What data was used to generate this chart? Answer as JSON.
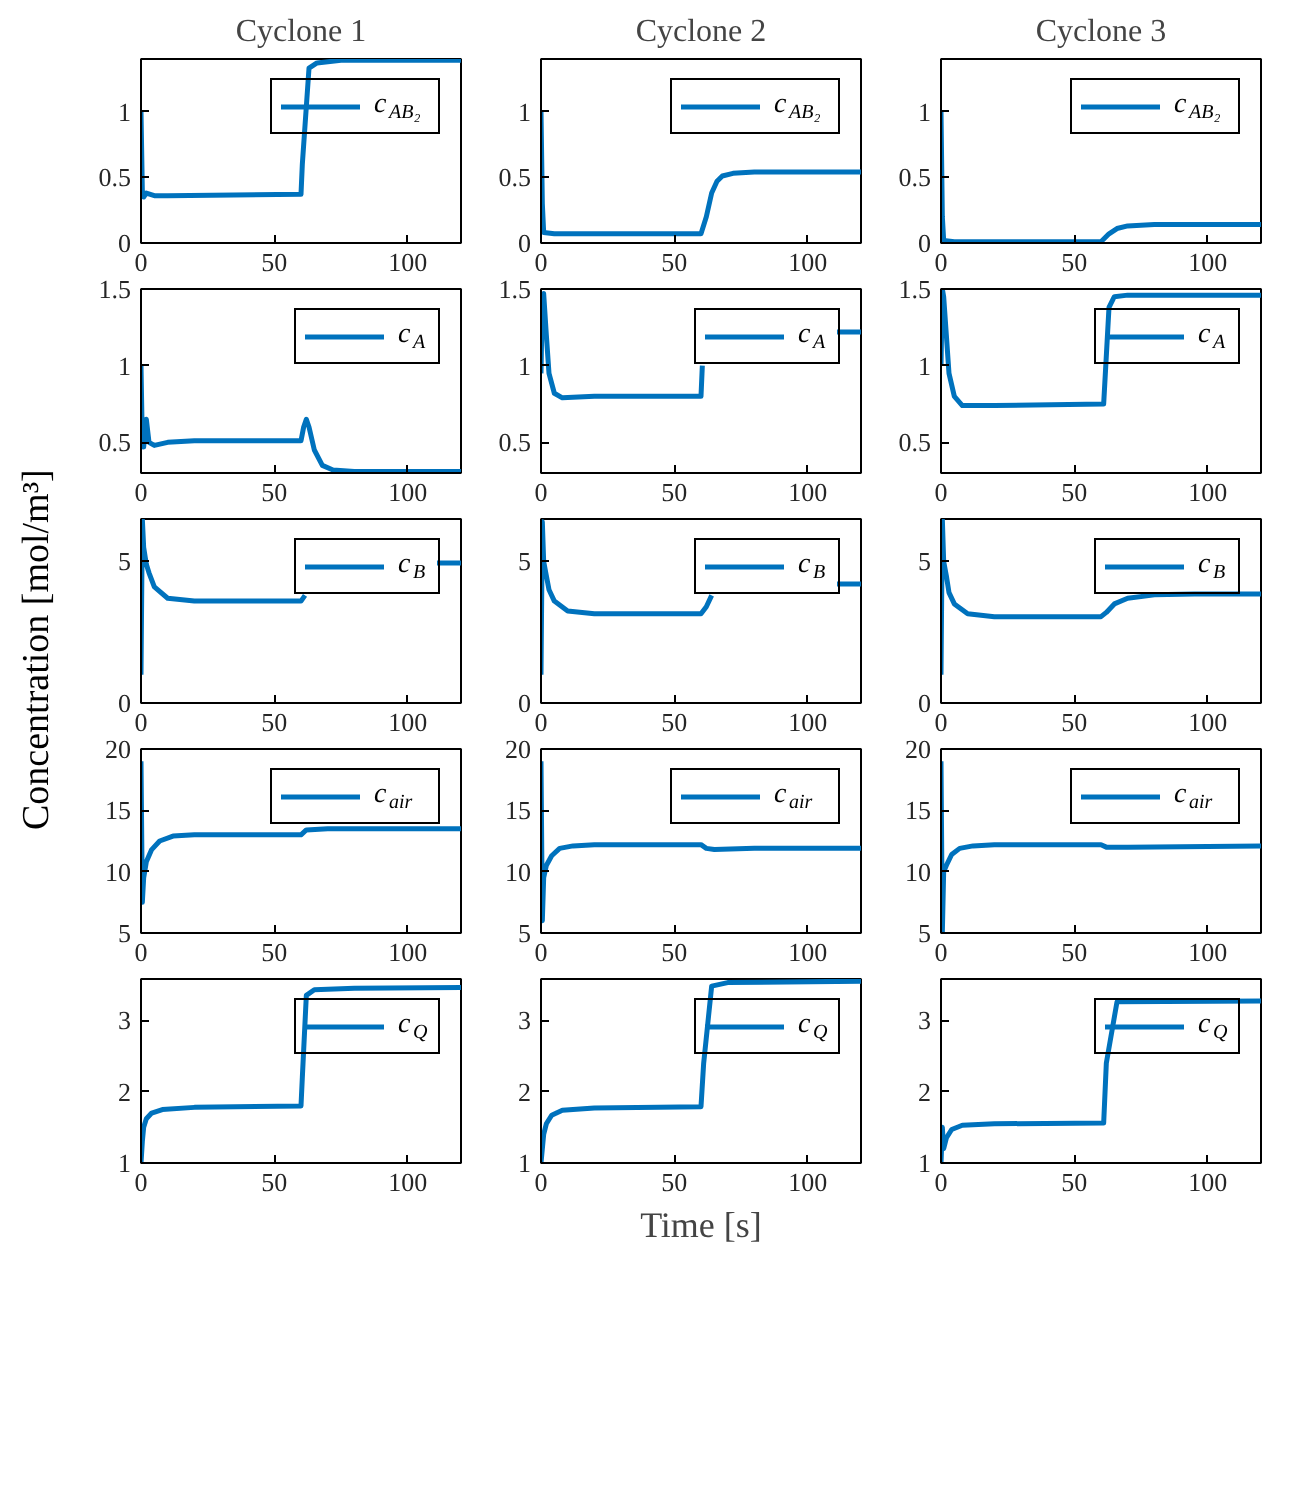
{
  "chart_data": [
    {
      "type": "line",
      "title": "Cyclone 1",
      "xlim": [
        0,
        120
      ],
      "xticks": [
        0,
        50,
        100
      ],
      "ylim": [
        0,
        1.4
      ],
      "yticks": [
        0,
        0.5,
        1
      ],
      "legend": "top right",
      "series": [
        {
          "name": "c$_{AB₂}$",
          "color": "#0072bd",
          "x": [
            0,
            0.5,
            1,
            2,
            5,
            10,
            60,
            60.5,
            63,
            66,
            75,
            120
          ],
          "values": [
            1.0,
            0.4,
            0.35,
            0.38,
            0.36,
            0.36,
            0.37,
            0.6,
            1.33,
            1.37,
            1.39,
            1.39
          ]
        }
      ]
    },
    {
      "type": "line",
      "title": "Cyclone 2",
      "xlim": [
        0,
        120
      ],
      "xticks": [
        0,
        50,
        100
      ],
      "ylim": [
        0,
        1.4
      ],
      "yticks": [
        0,
        0.5,
        1
      ],
      "legend": "top right",
      "series": [
        {
          "name": "c$_{AB₂}$",
          "color": "#0072bd",
          "x": [
            0,
            0.5,
            1,
            5,
            60,
            62,
            64,
            66,
            68,
            72,
            80,
            120
          ],
          "values": [
            1.0,
            0.3,
            0.08,
            0.07,
            0.07,
            0.2,
            0.38,
            0.47,
            0.51,
            0.53,
            0.54,
            0.54
          ]
        }
      ]
    },
    {
      "type": "line",
      "title": "Cyclone 3",
      "xlim": [
        0,
        120
      ],
      "xticks": [
        0,
        50,
        100
      ],
      "ylim": [
        0,
        1.4
      ],
      "yticks": [
        0,
        0.5,
        1
      ],
      "legend": "top right",
      "series": [
        {
          "name": "c$_{AB₂}$",
          "color": "#0072bd",
          "x": [
            0,
            0.5,
            1,
            5,
            60,
            63,
            66,
            70,
            80,
            120
          ],
          "values": [
            1.0,
            0.2,
            0.02,
            0.01,
            0.01,
            0.07,
            0.11,
            0.13,
            0.14,
            0.14
          ]
        }
      ]
    },
    {
      "type": "line",
      "xlim": [
        0,
        120
      ],
      "xticks": [
        0,
        50,
        100
      ],
      "ylim": [
        0.3,
        1.5
      ],
      "yticks": [
        0.5,
        1,
        1.5
      ],
      "legend": "top right",
      "series": [
        {
          "name": "c$_{A}$",
          "color": "#0072bd",
          "x": [
            0,
            0.5,
            1,
            2,
            3,
            5,
            10,
            20,
            60,
            61,
            62,
            63,
            65,
            68,
            72,
            80,
            120
          ],
          "values": [
            1.0,
            0.5,
            0.47,
            0.65,
            0.5,
            0.48,
            0.5,
            0.51,
            0.51,
            0.6,
            0.65,
            0.6,
            0.45,
            0.35,
            0.32,
            0.31,
            0.31
          ]
        }
      ]
    },
    {
      "type": "line",
      "xlim": [
        0,
        120
      ],
      "xticks": [
        0,
        50,
        100
      ],
      "ylim": [
        0.3,
        1.5
      ],
      "yticks": [
        0.5,
        1,
        1.5
      ],
      "legend": "top right",
      "series": [
        {
          "name": "c$_{A}$",
          "color": "#0072bd",
          "x": [
            0,
            0.5,
            1,
            2,
            3,
            5,
            8,
            20,
            60,
            60.5,
            85,
            111,
            120
          ],
          "values": [
            0.95,
            1.45,
            1.47,
            1.2,
            0.95,
            0.82,
            0.79,
            0.8,
            0.8,
            1.0,
            null,
            1.22,
            1.22
          ]
        }
      ]
    },
    {
      "type": "line",
      "xlim": [
        0,
        120
      ],
      "xticks": [
        0,
        50,
        100
      ],
      "ylim": [
        0.3,
        1.5
      ],
      "yticks": [
        0.5,
        1,
        1.5
      ],
      "legend": "top right",
      "series": [
        {
          "name": "c$_{A}$",
          "color": "#0072bd",
          "x": [
            0,
            0.5,
            1,
            2,
            3,
            5,
            8,
            20,
            61,
            63,
            65,
            70,
            120
          ],
          "values": [
            1.0,
            1.5,
            1.45,
            1.2,
            0.95,
            0.8,
            0.74,
            0.74,
            0.75,
            1.38,
            1.45,
            1.46,
            1.46
          ]
        }
      ]
    },
    {
      "type": "line",
      "ylabel": "Concentration [mol/m³]",
      "xlim": [
        0,
        120
      ],
      "xticks": [
        0,
        50,
        100
      ],
      "ylim": [
        0,
        6.5
      ],
      "yticks": [
        0,
        5
      ],
      "legend": "top right",
      "series": [
        {
          "name": "c$_{B}$",
          "color": "#0072bd",
          "values": [
            1.0,
            6.5,
            5.5,
            4.9,
            4.6,
            4.1,
            3.7,
            3.6,
            3.6,
            3.8,
            null,
            4.95,
            4.95
          ],
          "x": [
            0,
            0.5,
            1,
            2,
            3,
            5,
            10,
            20,
            60,
            61.5,
            80,
            111,
            120
          ]
        }
      ]
    },
    {
      "type": "line",
      "xlim": [
        0,
        120
      ],
      "xticks": [
        0,
        50,
        100
      ],
      "ylim": [
        0,
        6.5
      ],
      "yticks": [
        0,
        5
      ],
      "legend": "top right",
      "series": [
        {
          "name": "c$_{B}$",
          "color": "#0072bd",
          "x": [
            0,
            0.5,
            1,
            2,
            3,
            5,
            10,
            20,
            60,
            62,
            64,
            80,
            111,
            120
          ],
          "values": [
            1.0,
            6.4,
            5.0,
            4.5,
            4.0,
            3.6,
            3.25,
            3.15,
            3.15,
            3.4,
            3.8,
            null,
            4.2,
            4.2
          ]
        }
      ]
    },
    {
      "type": "line",
      "xlim": [
        0,
        120
      ],
      "xticks": [
        0,
        50,
        100
      ],
      "ylim": [
        0,
        6.5
      ],
      "yticks": [
        0,
        5
      ],
      "legend": "top right",
      "series": [
        {
          "name": "c$_{B}$",
          "color": "#0072bd",
          "x": [
            0,
            0.5,
            1,
            2,
            3,
            5,
            10,
            20,
            60,
            62,
            65,
            70,
            80,
            95,
            120
          ],
          "values": [
            1.0,
            6.5,
            5.0,
            4.5,
            3.9,
            3.5,
            3.15,
            3.05,
            3.05,
            3.2,
            3.5,
            3.7,
            3.82,
            3.85,
            3.85
          ]
        }
      ]
    },
    {
      "type": "line",
      "xlim": [
        0,
        120
      ],
      "xticks": [
        0,
        50,
        100
      ],
      "ylim": [
        5,
        20
      ],
      "yticks": [
        5,
        10,
        15,
        20
      ],
      "legend": "top right",
      "series": [
        {
          "name": "c$_{air}$",
          "color": "#0072bd",
          "x": [
            0,
            0.5,
            1,
            2,
            4,
            7,
            12,
            20,
            60,
            62,
            70,
            120
          ],
          "values": [
            19,
            7.5,
            9.5,
            10.8,
            11.8,
            12.5,
            12.9,
            13.0,
            13.0,
            13.4,
            13.5,
            13.5
          ]
        }
      ]
    },
    {
      "type": "line",
      "xlim": [
        0,
        120
      ],
      "xticks": [
        0,
        50,
        100
      ],
      "ylim": [
        5,
        20
      ],
      "yticks": [
        5,
        10,
        15,
        20
      ],
      "legend": "top right",
      "series": [
        {
          "name": "c$_{air}$",
          "color": "#0072bd",
          "x": [
            0,
            0.5,
            1,
            2,
            4,
            7,
            12,
            20,
            60,
            62,
            65,
            80,
            120
          ],
          "values": [
            19,
            6,
            9.5,
            10.5,
            11.3,
            11.9,
            12.1,
            12.2,
            12.2,
            11.9,
            11.8,
            11.9,
            11.9
          ]
        }
      ]
    },
    {
      "type": "line",
      "xlim": [
        0,
        120
      ],
      "xticks": [
        0,
        50,
        100
      ],
      "ylim": [
        5,
        20
      ],
      "yticks": [
        5,
        10,
        15,
        20
      ],
      "legend": "top right",
      "series": [
        {
          "name": "c$_{air}$",
          "color": "#0072bd",
          "x": [
            0,
            0.5,
            1,
            2,
            4,
            7,
            12,
            20,
            60,
            62,
            70,
            120
          ],
          "values": [
            19,
            5,
            10,
            10.5,
            11.4,
            11.9,
            12.1,
            12.2,
            12.2,
            12.0,
            12.0,
            12.1
          ]
        }
      ]
    },
    {
      "type": "line",
      "xlim": [
        0,
        120
      ],
      "xticks": [
        0,
        50,
        100
      ],
      "ylim": [
        1,
        3.58
      ],
      "yticks": [
        1,
        2,
        3
      ],
      "legend": "top right",
      "series": [
        {
          "name": "c$_{Q}$",
          "color": "#0072bd",
          "x": [
            0,
            0.5,
            1,
            2,
            4,
            8,
            20,
            60,
            60.5,
            62,
            65,
            80,
            120
          ],
          "values": [
            1.0,
            1.3,
            1.5,
            1.62,
            1.7,
            1.75,
            1.78,
            1.8,
            2.2,
            3.35,
            3.43,
            3.45,
            3.46
          ]
        }
      ]
    },
    {
      "type": "line",
      "xlabel": "Time [s]",
      "xlim": [
        0,
        120
      ],
      "xticks": [
        0,
        50,
        100
      ],
      "ylim": [
        1,
        3.58
      ],
      "yticks": [
        1,
        2,
        3
      ],
      "legend": "top right",
      "series": [
        {
          "name": "c$_{Q}$",
          "color": "#0072bd",
          "x": [
            0,
            1,
            2,
            4,
            8,
            20,
            60,
            61,
            64,
            70,
            120
          ],
          "values": [
            1.0,
            1.4,
            1.55,
            1.67,
            1.74,
            1.77,
            1.79,
            2.4,
            3.48,
            3.53,
            3.55
          ]
        }
      ]
    },
    {
      "type": "line",
      "xlim": [
        0,
        120
      ],
      "xticks": [
        0,
        50,
        100
      ],
      "ylim": [
        1,
        3.58
      ],
      "yticks": [
        1,
        2,
        3
      ],
      "legend": "top right",
      "series": [
        {
          "name": "c$_{Q}$",
          "color": "#0072bd",
          "x": [
            0,
            0.5,
            1,
            2,
            4,
            8,
            20,
            61,
            62,
            66,
            120
          ],
          "values": [
            1.0,
            1.5,
            1.2,
            1.35,
            1.47,
            1.53,
            1.55,
            1.56,
            2.4,
            3.26,
            3.27
          ]
        }
      ]
    }
  ]
}
